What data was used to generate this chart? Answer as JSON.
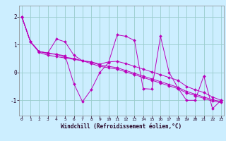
{
  "xlabel": "Windchill (Refroidissement éolien,°C)",
  "background_color": "#cceeff",
  "plot_bg_color": "#cceeff",
  "line_color": "#bb00bb",
  "grid_color": "#99cccc",
  "xlim": [
    0,
    23
  ],
  "ylim": [
    -1.55,
    2.4
  ],
  "xticks": [
    0,
    1,
    2,
    3,
    4,
    5,
    6,
    7,
    8,
    9,
    10,
    11,
    12,
    13,
    14,
    15,
    16,
    17,
    18,
    19,
    20,
    21,
    22,
    23
  ],
  "yticks": [
    -1,
    0,
    1,
    2
  ],
  "series": [
    [
      2.0,
      1.1,
      0.75,
      0.7,
      0.65,
      0.6,
      -0.4,
      -1.05,
      -0.62,
      0.0,
      0.35,
      1.35,
      1.3,
      1.15,
      -0.58,
      -0.6,
      1.3,
      0.0,
      -0.55,
      -1.0,
      -1.0,
      -0.12,
      -1.3,
      -1.0
    ],
    [
      2.0,
      1.1,
      0.75,
      0.7,
      1.2,
      1.1,
      0.62,
      0.42,
      0.38,
      0.3,
      0.38,
      0.4,
      0.32,
      0.22,
      0.12,
      0.02,
      -0.08,
      -0.18,
      -0.28,
      -0.5,
      -0.62,
      -0.72,
      -0.88,
      -1.0
    ],
    [
      2.0,
      1.1,
      0.75,
      0.68,
      0.65,
      0.55,
      0.5,
      0.42,
      0.37,
      0.27,
      0.22,
      0.17,
      0.07,
      -0.03,
      -0.13,
      -0.23,
      -0.33,
      -0.43,
      -0.53,
      -0.68,
      -0.78,
      -0.88,
      -0.98,
      -1.05
    ],
    [
      2.0,
      1.1,
      0.72,
      0.62,
      0.57,
      0.52,
      0.47,
      0.42,
      0.32,
      0.22,
      0.17,
      0.12,
      0.02,
      -0.08,
      -0.18,
      -0.28,
      -0.38,
      -0.48,
      -0.58,
      -0.73,
      -0.83,
      -0.93,
      -1.03,
      -1.08
    ]
  ],
  "fig_width": 3.2,
  "fig_height": 2.0,
  "dpi": 100
}
